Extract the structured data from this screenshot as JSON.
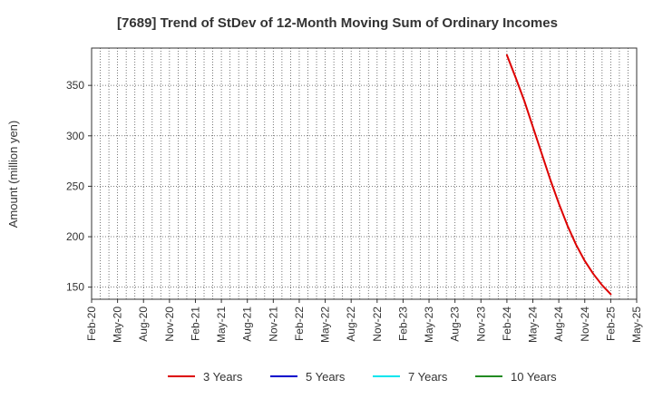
{
  "chart_data": {
    "type": "line",
    "title": "[7689]  Trend of StDev of 12-Month Moving Sum of Ordinary Incomes",
    "xlabel": "",
    "ylabel": "Amount (million yen)",
    "x_start": "2020-02",
    "x_end": "2025-05",
    "xticks": [
      "Feb-20",
      "May-20",
      "Aug-20",
      "Nov-20",
      "Feb-21",
      "May-21",
      "Aug-21",
      "Nov-21",
      "Feb-22",
      "May-22",
      "Aug-22",
      "Nov-22",
      "Feb-23",
      "May-23",
      "Aug-23",
      "Nov-23",
      "Feb-24",
      "May-24",
      "Aug-24",
      "Nov-24",
      "Feb-25",
      "May-25"
    ],
    "yticks": [
      150,
      200,
      250,
      300,
      350
    ],
    "ylim": [
      138,
      387
    ],
    "grid": true,
    "legend_position": "bottom",
    "series": [
      {
        "name": "3 Years",
        "color": "#dd0000",
        "points": [
          [
            "2024-02",
            380
          ],
          [
            "2024-03",
            358
          ],
          [
            "2024-04",
            335
          ],
          [
            "2024-05",
            309
          ],
          [
            "2024-06",
            283
          ],
          [
            "2024-07",
            257
          ],
          [
            "2024-08",
            233
          ],
          [
            "2024-09",
            211
          ],
          [
            "2024-10",
            192
          ],
          [
            "2024-11",
            176
          ],
          [
            "2024-12",
            163
          ],
          [
            "2025-01",
            152
          ],
          [
            "2025-02",
            143
          ]
        ]
      },
      {
        "name": "5 Years",
        "color": "#0000cc",
        "points": []
      },
      {
        "name": "7 Years",
        "color": "#00e5ee",
        "points": []
      },
      {
        "name": "10 Years",
        "color": "#228b22",
        "points": []
      }
    ]
  }
}
